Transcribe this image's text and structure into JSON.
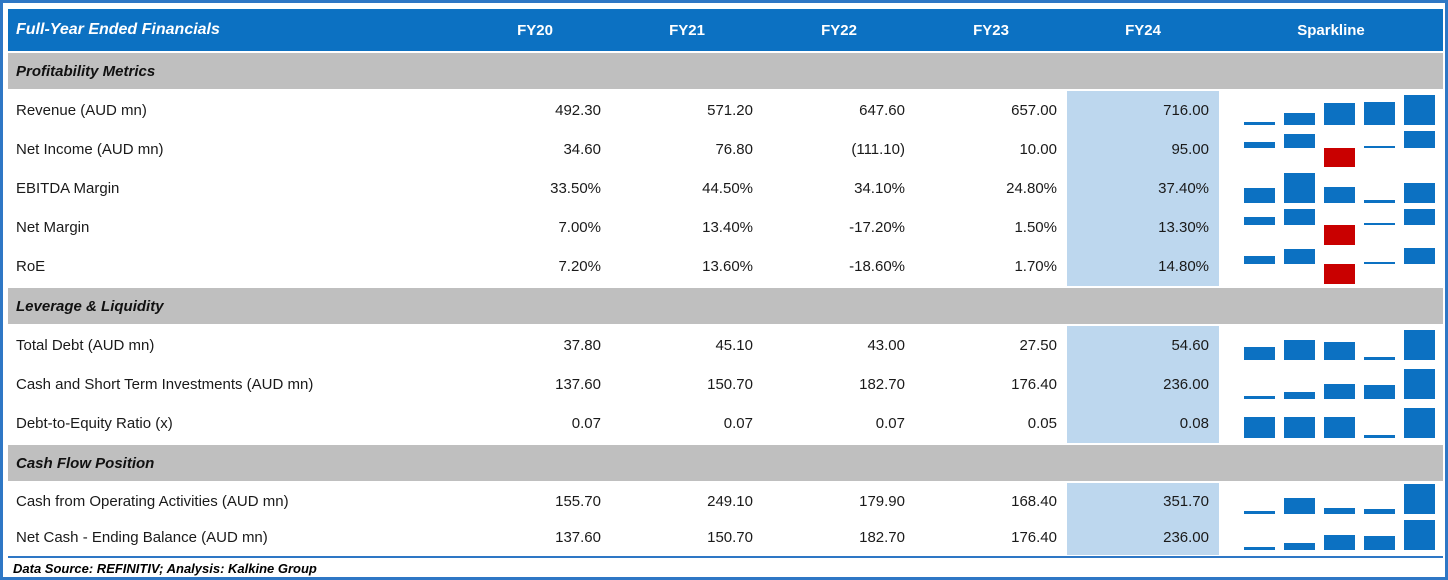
{
  "chart_data": {
    "type": "table",
    "title": "Full-Year Ended Financials",
    "columns": [
      "FY20",
      "FY21",
      "FY22",
      "FY23",
      "FY24"
    ],
    "sparkline_label": "Sparkline",
    "highlighted_column": "FY24",
    "sparkline_style": "column-sparkline, blue positive bars, red negative bars, scaled per row min/max",
    "sections": [
      {
        "title": "Profitability Metrics",
        "rows": [
          {
            "label": "Revenue (AUD mn)",
            "values": [
              "492.30",
              "571.20",
              "647.60",
              "657.00",
              "716.00"
            ],
            "numeric": [
              492.3,
              571.2,
              647.6,
              657.0,
              716.0
            ]
          },
          {
            "label": "Net Income (AUD mn)",
            "values": [
              "34.60",
              "76.80",
              "(111.10)",
              "10.00",
              "95.00"
            ],
            "numeric": [
              34.6,
              76.8,
              -111.1,
              10.0,
              95.0
            ]
          },
          {
            "label": "EBITDA Margin",
            "values": [
              "33.50%",
              "44.50%",
              "34.10%",
              "24.80%",
              "37.40%"
            ],
            "numeric": [
              33.5,
              44.5,
              34.1,
              24.8,
              37.4
            ]
          },
          {
            "label": "Net Margin",
            "values": [
              "7.00%",
              "13.40%",
              "-17.20%",
              "1.50%",
              "13.30%"
            ],
            "numeric": [
              7.0,
              13.4,
              -17.2,
              1.5,
              13.3
            ]
          },
          {
            "label": "RoE",
            "values": [
              "7.20%",
              "13.60%",
              "-18.60%",
              "1.70%",
              "14.80%"
            ],
            "numeric": [
              7.2,
              13.6,
              -18.6,
              1.7,
              14.8
            ]
          }
        ]
      },
      {
        "title": "Leverage & Liquidity",
        "rows": [
          {
            "label": "Total Debt (AUD mn)",
            "values": [
              "37.80",
              "45.10",
              "43.00",
              "27.50",
              "54.60"
            ],
            "numeric": [
              37.8,
              45.1,
              43.0,
              27.5,
              54.6
            ]
          },
          {
            "label": "Cash and Short Term Investments (AUD mn)",
            "values": [
              "137.60",
              "150.70",
              "182.70",
              "176.40",
              "236.00"
            ],
            "numeric": [
              137.6,
              150.7,
              182.7,
              176.4,
              236.0
            ]
          },
          {
            "label": "Debt-to-Equity Ratio (x)",
            "values": [
              "0.07",
              "0.07",
              "0.07",
              "0.05",
              "0.08"
            ],
            "numeric": [
              0.07,
              0.07,
              0.07,
              0.05,
              0.08
            ]
          }
        ]
      },
      {
        "title": "Cash Flow Position",
        "rows": [
          {
            "label": "Cash from Operating Activities (AUD mn)",
            "values": [
              "155.70",
              "249.10",
              "179.90",
              "168.40",
              "351.70"
            ],
            "numeric": [
              155.7,
              249.1,
              179.9,
              168.4,
              351.7
            ]
          },
          {
            "label": "Net Cash - Ending Balance (AUD mn)",
            "values": [
              "137.60",
              "150.70",
              "182.70",
              "176.40",
              "236.00"
            ],
            "numeric": [
              137.6,
              150.7,
              182.7,
              176.4,
              236.0
            ]
          }
        ]
      }
    ]
  },
  "footer": {
    "text": "Data Source: REFINITIV; Analysis: Kalkine Group"
  },
  "colors": {
    "header_bg": "#0C71C2",
    "header_text": "#FFFFFF",
    "section_bg": "#BFBFBF",
    "highlight_bg": "#BDD7EE",
    "bar_positive": "#0C71C2",
    "bar_negative": "#C90000",
    "frame_border": "#2E77C5",
    "text": "#1A1A1A"
  }
}
